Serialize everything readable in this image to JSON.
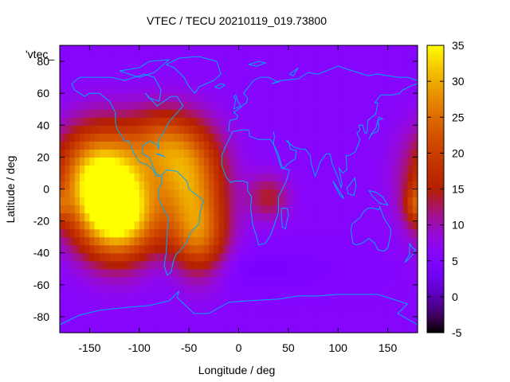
{
  "chart_data": {
    "type": "heatmap",
    "title": "VTEC / TECU 20210119_019.73800",
    "xlabel": "Longitude / deg",
    "ylabel": "Latitude / deg",
    "key_label": "'vtec_",
    "xlim": [
      -180,
      180
    ],
    "ylim": [
      -90,
      90
    ],
    "x_ticks": [
      -150,
      -100,
      -50,
      0,
      50,
      100,
      150
    ],
    "y_ticks": [
      -80,
      -60,
      -40,
      -20,
      0,
      20,
      40,
      60,
      80
    ],
    "x_tick_labels": [
      "-150",
      "-100",
      "-50",
      "0",
      "50",
      "100",
      "150"
    ],
    "y_tick_labels": [
      "-80",
      "-60",
      "-40",
      "-20",
      "0",
      "20",
      "40",
      "60",
      "80"
    ],
    "colorbar": {
      "range": [
        -5,
        35
      ],
      "ticks": [
        -5,
        0,
        5,
        10,
        15,
        20,
        25,
        30,
        35
      ],
      "tick_labels": [
        "-5",
        "0",
        "5",
        "10",
        "15",
        "20",
        "25",
        "30",
        "35"
      ]
    },
    "background_vtec": 6,
    "anomalies": [
      {
        "lon": -140,
        "lat": 8,
        "peak": 27,
        "sigma_lon": 30,
        "sigma_lat": 22
      },
      {
        "lon": -120,
        "lat": -18,
        "peak": 26,
        "sigma_lon": 28,
        "sigma_lat": 20
      },
      {
        "lon": -50,
        "lat": 8,
        "peak": 20,
        "sigma_lon": 25,
        "sigma_lat": 22
      },
      {
        "lon": -40,
        "lat": -30,
        "peak": 17,
        "sigma_lon": 20,
        "sigma_lat": 18
      },
      {
        "lon": -80,
        "lat": 30,
        "peak": 12,
        "sigma_lon": 25,
        "sigma_lat": 15
      },
      {
        "lon": 30,
        "lat": -5,
        "peak": 8,
        "sigma_lon": 15,
        "sigma_lat": 10
      },
      {
        "lon": 178,
        "lat": -10,
        "peak": 9,
        "sigma_lon": 8,
        "sigma_lat": 8
      },
      {
        "lon": 0,
        "lat": -50,
        "peak": -2,
        "sigma_lon": 80,
        "sigma_lat": 10
      }
    ],
    "coastline_color": "#00aaff",
    "colormap": "gnuplot pm3d black-purple-red-yellow",
    "grid": false,
    "legend": "none"
  }
}
